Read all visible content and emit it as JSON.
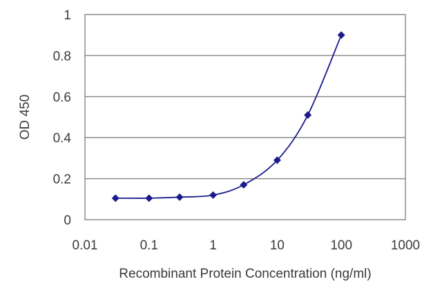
{
  "chart_data": {
    "type": "line",
    "xlabel": "Recombinant Protein Concentration (ng/ml)",
    "ylabel": "OD 450",
    "x_scale": "log",
    "xlim": [
      0.01,
      1000
    ],
    "ylim": [
      0,
      1
    ],
    "x_ticks": [
      0.01,
      0.1,
      1,
      10,
      100,
      1000
    ],
    "x_tick_labels": [
      "0.01",
      "0.1",
      "1",
      "10",
      "100",
      "1000"
    ],
    "y_ticks": [
      0,
      0.2,
      0.4,
      0.6,
      0.8,
      1
    ],
    "y_tick_labels": [
      "0",
      "0.2",
      "0.4",
      "0.6",
      "0.8",
      "1"
    ],
    "grid": "horizontal",
    "series": [
      {
        "color": "#1a1a8c",
        "marker": "diamond",
        "x": [
          0.03,
          0.1,
          0.3,
          1,
          3,
          10,
          30,
          100
        ],
        "y": [
          0.105,
          0.105,
          0.11,
          0.12,
          0.17,
          0.29,
          0.51,
          0.9
        ]
      }
    ],
    "colors": {
      "plot_border": "#8c8c8c",
      "grid": "#8c8c8c",
      "series": "#1a1a8c"
    }
  }
}
